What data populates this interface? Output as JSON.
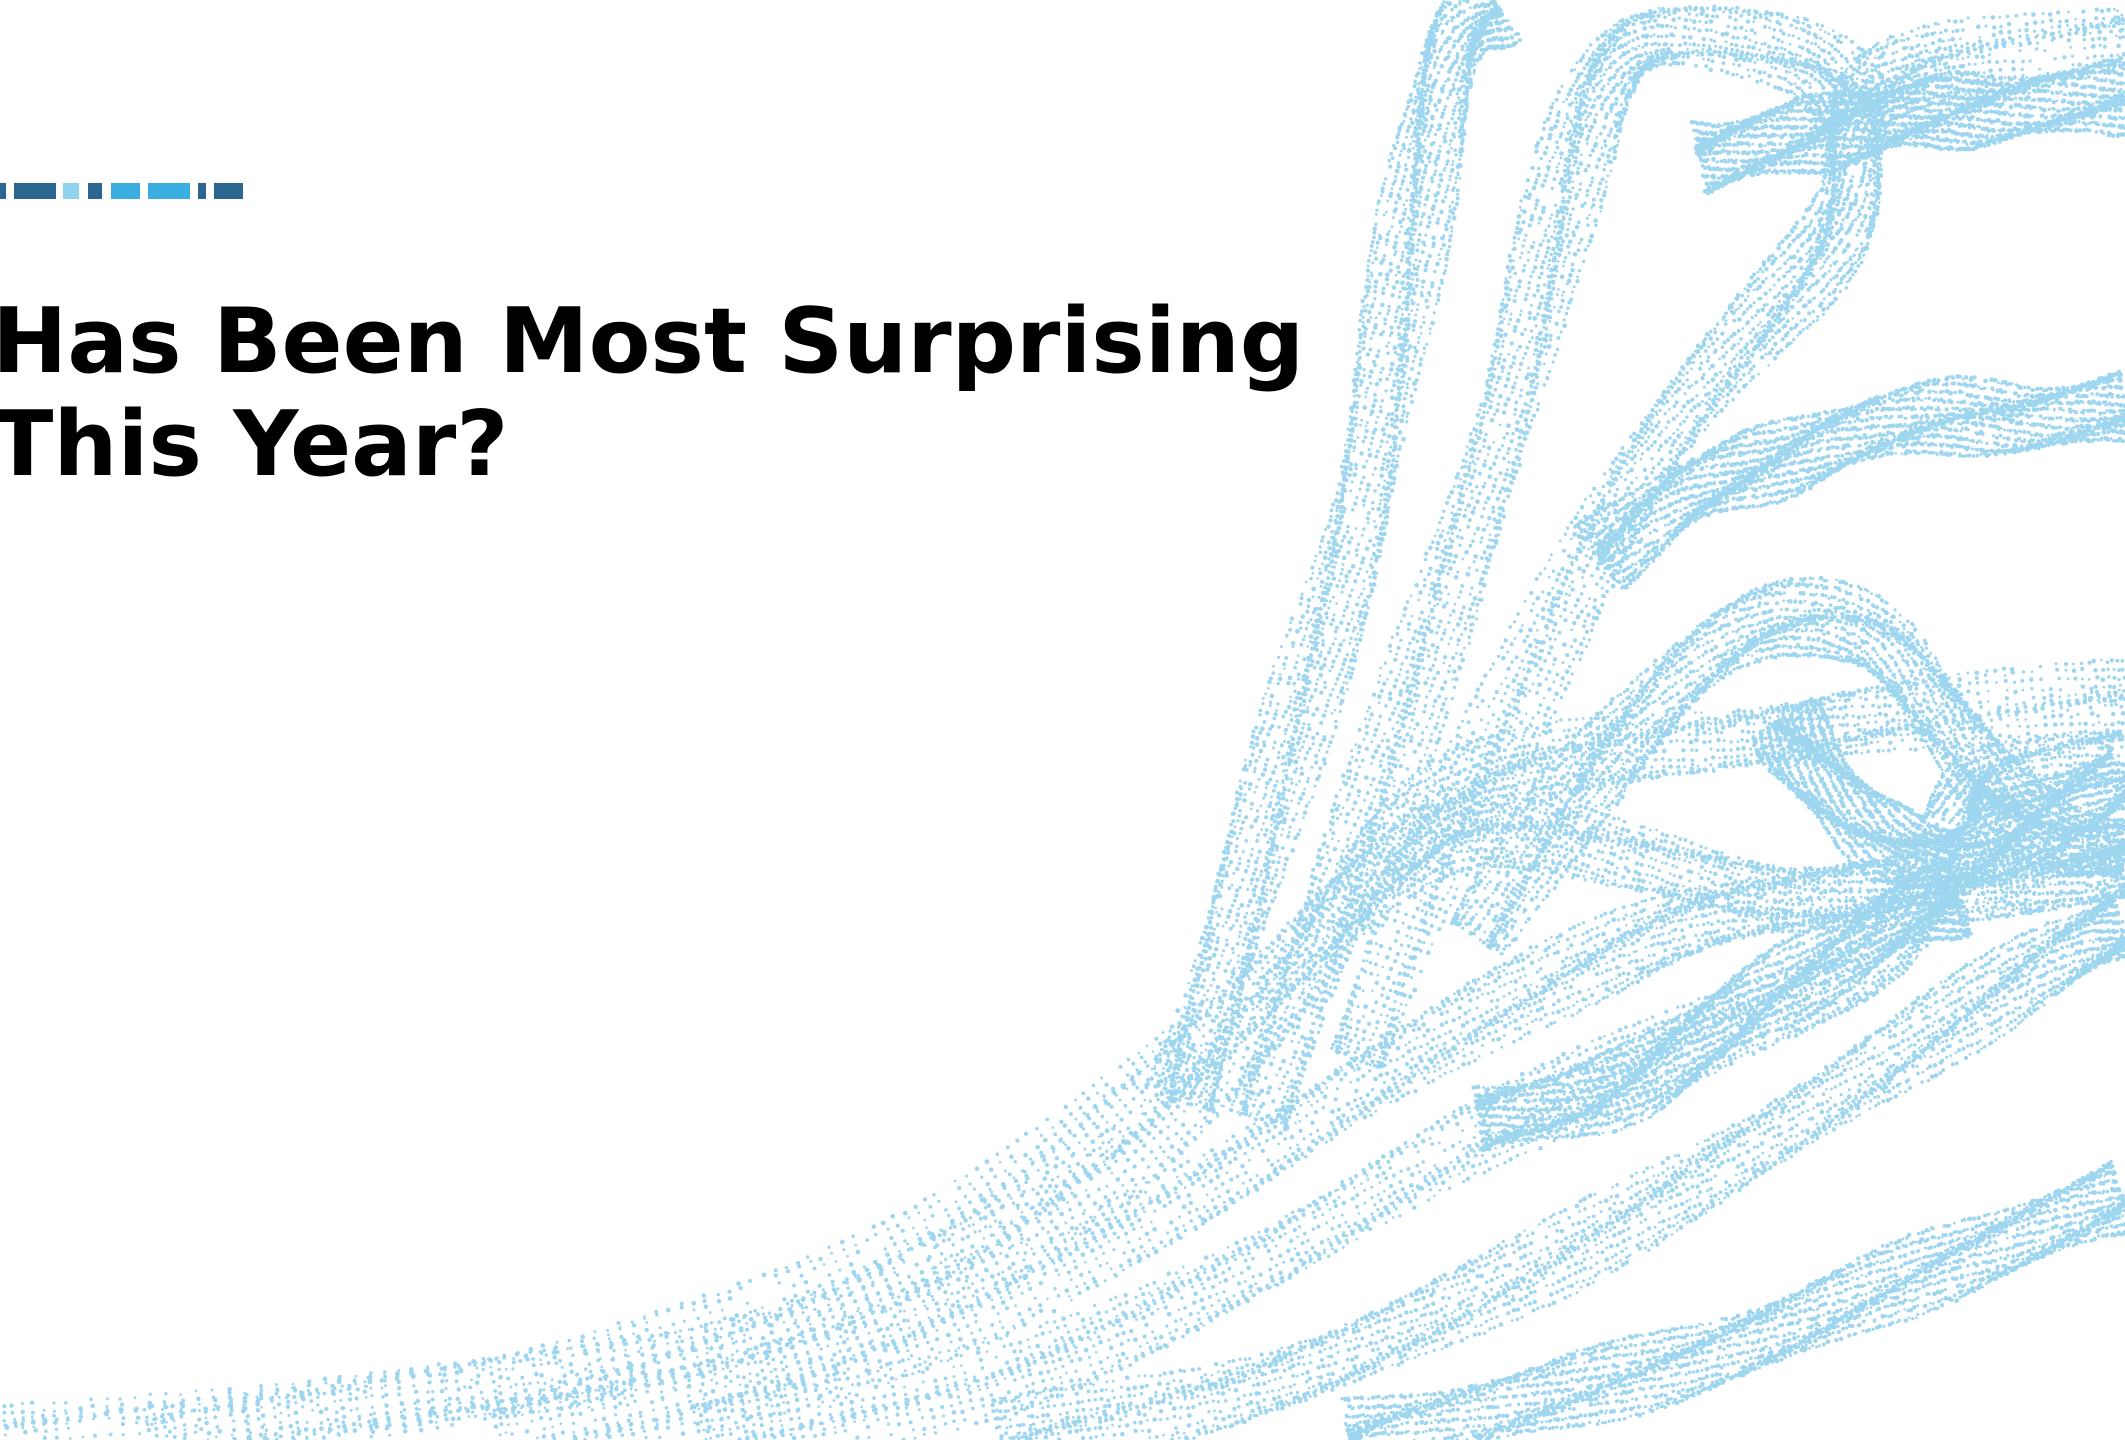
{
  "slide": {
    "title_line_1": "Has Been Most Surprising",
    "title_line_2": "This Year?"
  },
  "colors": {
    "background": "#ffffff",
    "title": "#000000",
    "dots": "#9fd6ef",
    "accent_dark": "#2a6690",
    "accent_mid": "#3aaee0",
    "accent_light": "#8fd2ee"
  },
  "decorations": {
    "background_art": "blue-dotted-wave-particles",
    "accent_bar": "segmented-blue-accent-bar"
  }
}
